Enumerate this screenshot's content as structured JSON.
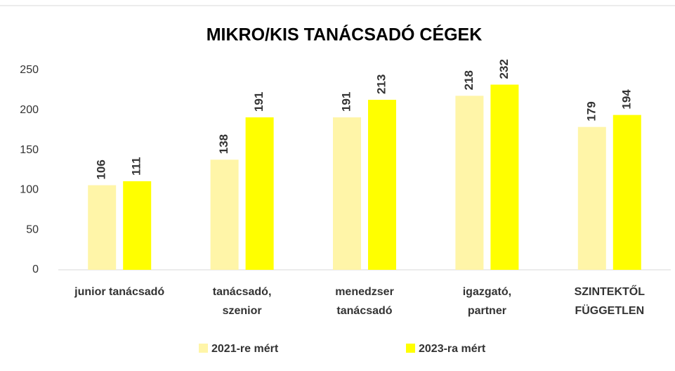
{
  "chart_data": {
    "type": "bar",
    "title": "MIKRO/KIS TANÁCSADÓ CÉGEK",
    "categories": [
      [
        "junior tanácsadó"
      ],
      [
        "tanácsadó,",
        "szenior"
      ],
      [
        "menedzser",
        "tanácsadó"
      ],
      [
        "igazgató,",
        "partner"
      ],
      [
        "SZINTEKTŐL",
        "FÜGGETLEN"
      ]
    ],
    "series": [
      {
        "name": "2021-re mért",
        "color": "#fff5a8",
        "values": [
          106,
          138,
          191,
          218,
          179
        ]
      },
      {
        "name": "2023-ra mért",
        "color": "#ffff00",
        "values": [
          111,
          191,
          213,
          232,
          194
        ]
      }
    ],
    "ylim": [
      0,
      250
    ],
    "yticks": [
      0,
      50,
      100,
      150,
      200,
      250
    ],
    "grid": false,
    "legend": "bottom"
  }
}
